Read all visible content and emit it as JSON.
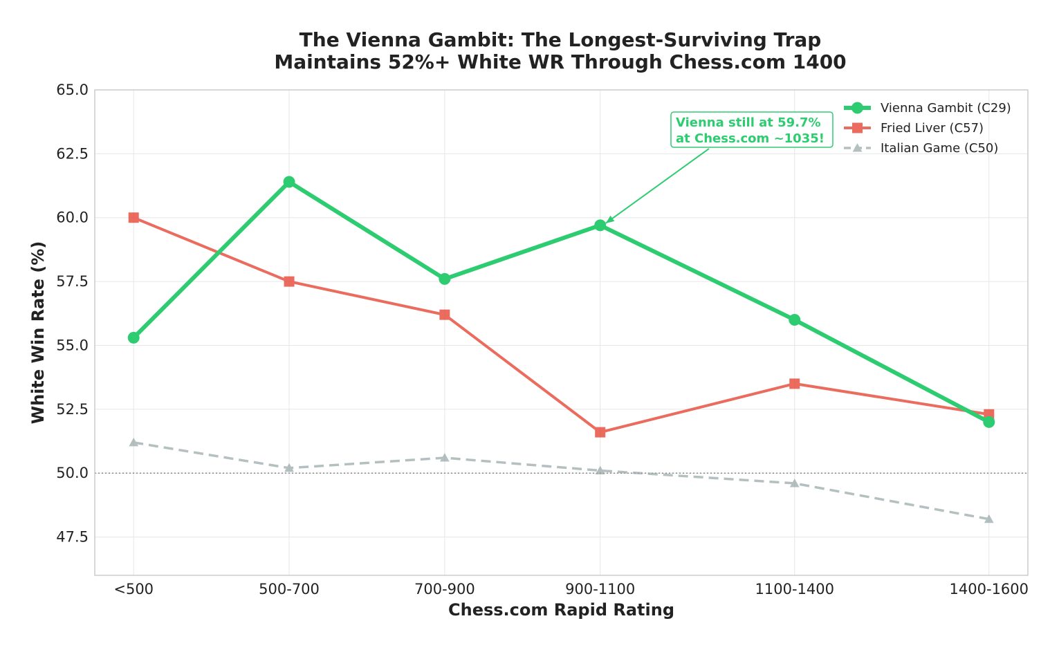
{
  "chart_data": {
    "type": "line",
    "title_lines": [
      "The Vienna Gambit: The Longest-Surviving Trap",
      "Maintains 52%+ White WR Through Chess.com 1400"
    ],
    "xlabel": "Chess.com Rapid Rating",
    "ylabel": "White Win Rate (%)",
    "categories": [
      "<500",
      "500-700",
      "700-900",
      "900-1100",
      "1100-1400",
      "1400-1600"
    ],
    "x": [
      400,
      600,
      800,
      1000,
      1250,
      1500
    ],
    "xlim": [
      350,
      1550
    ],
    "ylim": [
      46.0,
      65.0
    ],
    "yticks": [
      "47.5",
      "50.0",
      "52.5",
      "55.0",
      "57.5",
      "60.0",
      "62.5",
      "65.0"
    ],
    "reference_line": {
      "y": 50.0,
      "style": "dotted",
      "color": "#888888"
    },
    "grid": true,
    "legend_position": "top-right",
    "series": [
      {
        "name": "Vienna Gambit (C29)",
        "values": [
          55.3,
          61.4,
          57.6,
          59.7,
          56.0,
          52.0
        ],
        "color": "#2ecc71",
        "marker": "circle",
        "dash": "solid",
        "emphasis": "thick"
      },
      {
        "name": "Fried Liver (C57)",
        "values": [
          60.0,
          57.5,
          56.2,
          51.6,
          53.5,
          52.3
        ],
        "color": "#e74c3c",
        "marker": "square",
        "dash": "solid",
        "emphasis": "medium"
      },
      {
        "name": "Italian Game (C50)",
        "values": [
          51.2,
          50.2,
          50.6,
          50.1,
          49.6,
          48.2
        ],
        "color": "#95a5a6",
        "marker": "triangle",
        "dash": "dashed",
        "emphasis": "thin"
      }
    ],
    "annotation": {
      "lines": [
        "Vienna still at 59.7%",
        "at Chess.com ~1035!"
      ],
      "points_to": {
        "series": 0,
        "index": 3
      },
      "color": "#2ecc71"
    }
  }
}
